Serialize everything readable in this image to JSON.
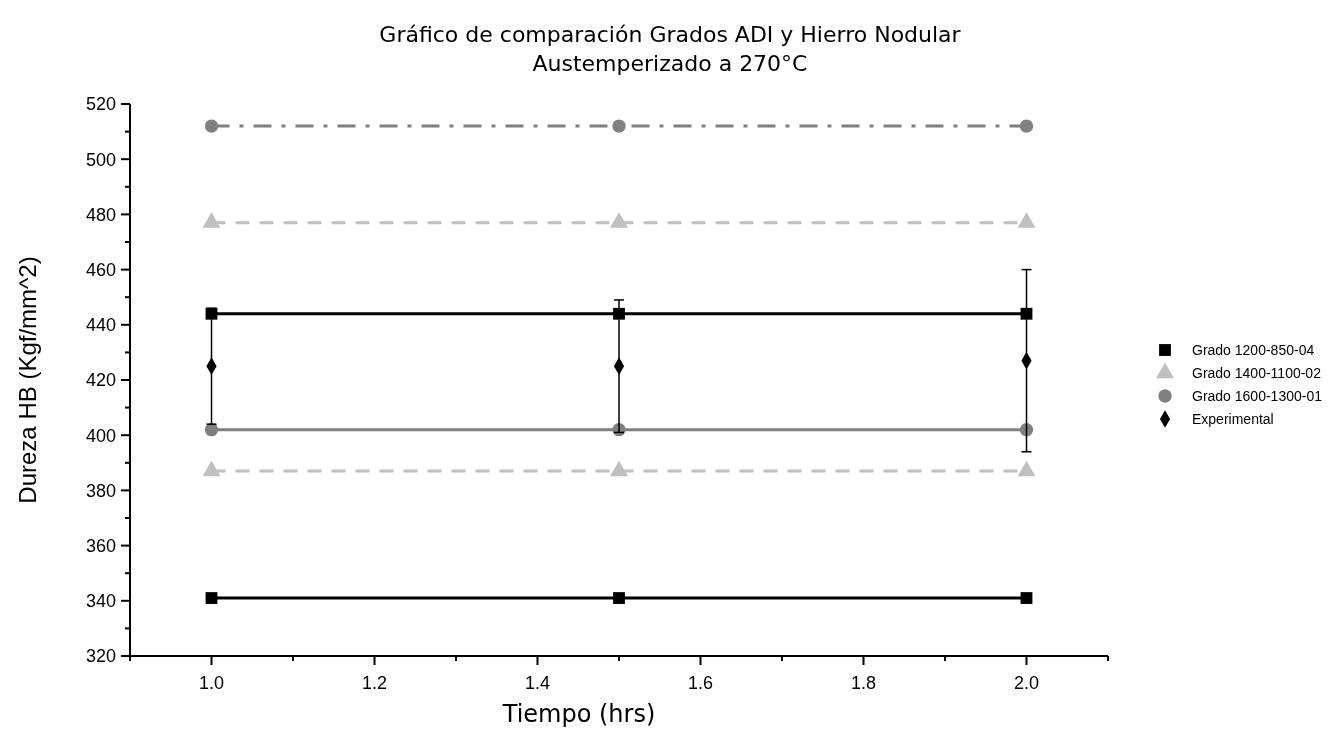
{
  "chart_data": {
    "type": "line",
    "title": "Gráfico de comparación Grados ADI y Hierro Nodular\nAustemperizado a 270°C",
    "xlabel": "Tiempo (hrs)",
    "ylabel": "Dureza HB (Kgf/mm^2)",
    "x": [
      1.0,
      1.5,
      2.0
    ],
    "xlim": [
      0.9,
      2.1
    ],
    "ylim": [
      320,
      520
    ],
    "xticks": [
      {
        "value": 0.9,
        "label": null
      },
      {
        "value": 1.0,
        "label": "1.0"
      },
      {
        "value": 1.1,
        "label": null
      },
      {
        "value": 1.2,
        "label": "1.2"
      },
      {
        "value": 1.3,
        "label": null
      },
      {
        "value": 1.4,
        "label": "1.4"
      },
      {
        "value": 1.5,
        "label": null
      },
      {
        "value": 1.6,
        "label": "1.6"
      },
      {
        "value": 1.7,
        "label": null
      },
      {
        "value": 1.8,
        "label": "1.8"
      },
      {
        "value": 1.9,
        "label": null
      },
      {
        "value": 2.0,
        "label": "2.0"
      },
      {
        "value": 2.1,
        "label": null
      }
    ],
    "yticks": [
      320,
      {
        "value": 330,
        "label": null
      },
      340,
      {
        "value": 350,
        "label": null
      },
      360,
      {
        "value": 370,
        "label": null
      },
      380,
      {
        "value": 390,
        "label": null
      },
      400,
      {
        "value": 410,
        "label": null
      },
      420,
      {
        "value": 430,
        "label": null
      },
      440,
      {
        "value": 450,
        "label": null
      },
      460,
      {
        "value": 470,
        "label": null
      },
      480,
      {
        "value": 490,
        "label": null
      },
      500,
      {
        "value": 510,
        "label": null
      },
      520
    ],
    "grid": false,
    "legend": "right",
    "series": [
      {
        "name": "Grado 1200-850-04",
        "color": "#000000",
        "marker": "square",
        "line_style": "solid",
        "values": [
          444,
          444,
          444
        ]
      },
      {
        "color": "#000000",
        "marker": "square",
        "line_style": "solid",
        "values": [
          341,
          341,
          341
        ]
      },
      {
        "name": "Grado 1400-1100-02",
        "color": "#c0c0c0",
        "marker": "triangle",
        "line_style": "dashed",
        "values": [
          477,
          477,
          477
        ]
      },
      {
        "color": "#c0c0c0",
        "marker": "triangle",
        "line_style": "dashed",
        "values": [
          387,
          387,
          387
        ]
      },
      {
        "name": "Grado 1600-1300-01",
        "color": "#808080",
        "marker": "circle",
        "line_style": "dashdot",
        "values": [
          512,
          512,
          512
        ]
      },
      {
        "color": "#808080",
        "marker": "circle",
        "line_style": "solid",
        "values": [
          402,
          402,
          402
        ]
      },
      {
        "name": "Experimental",
        "type": "scatter",
        "color": "#000000",
        "marker": "diamond",
        "values": [
          425,
          425,
          427
        ],
        "errors": [
          21,
          24,
          33
        ]
      }
    ]
  }
}
